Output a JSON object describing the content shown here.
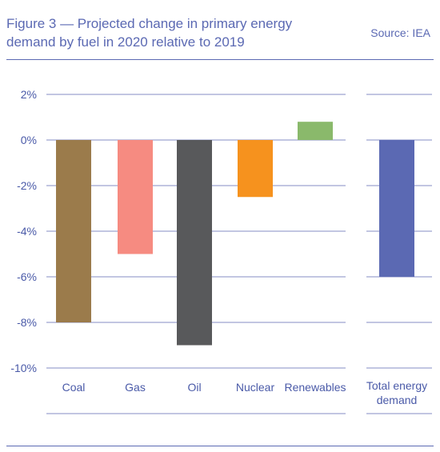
{
  "header": {
    "title_line1": "Figure 3 — Projected change in primary energy",
    "title_line2": "demand by fuel in 2020 relative to 2019",
    "source": "Source: IEA"
  },
  "chart_data": {
    "type": "bar",
    "title": "Figure 3 — Projected change in primary energy demand by fuel in 2020 relative to 2019",
    "categories": [
      "Coal",
      "Gas",
      "Oil",
      "Nuclear",
      "Renewables"
    ],
    "values": [
      -8,
      -5,
      -9,
      -2.5,
      0.8
    ],
    "colors": [
      "#9b7b4b",
      "#f68b81",
      "#58595b",
      "#f6921e",
      "#8ab96b"
    ],
    "total": {
      "label_line1": "Total energy",
      "label_line2": "demand",
      "value": -6,
      "color": "#5b69b3"
    },
    "yticks": [
      2,
      0,
      -2,
      -4,
      -6,
      -8,
      -10
    ],
    "ytick_labels": [
      "2%",
      "0%",
      "-2%",
      "-4%",
      "-6%",
      "-8%",
      "-10%"
    ],
    "ylim": [
      -10,
      2
    ],
    "grid": true,
    "legend": "none"
  }
}
